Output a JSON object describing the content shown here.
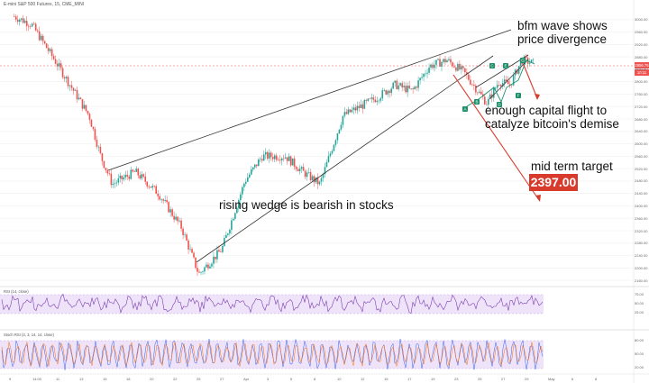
{
  "chart_title": "E-mini S&P 500 Futures, 15, CME_MINI",
  "annotations": {
    "bfm": "bfm wave shows\nprice divergence",
    "capital": "enough capital flight to\ncatalyze bitcoin's demise",
    "midterm": "mid term target",
    "wedge": "rising wedge is bearish in stocks"
  },
  "target_value": "2397.00",
  "last_price_labels": {
    "price": "2856.75",
    "close": "10:11"
  },
  "price_axis": [
    "3000.00",
    "2960.00",
    "2920.00",
    "2880.00",
    "2840.00",
    "2800.00",
    "2760.00",
    "2720.00",
    "2680.00",
    "2640.00",
    "2600.00",
    "2560.00",
    "2520.00",
    "2480.00",
    "2440.00",
    "2400.00",
    "2360.00",
    "2320.00",
    "2280.00",
    "2240.00",
    "2200.00",
    "2160.00"
  ],
  "rsi_label": "RSI (14, close)",
  "rsi_axis": [
    "75.00",
    "50.00",
    "25.00"
  ],
  "stoch_label": "Stoch RSI (3, 3, 14, 14, close)",
  "stoch_axis": [
    "80.00",
    "50.00",
    "20.00"
  ],
  "time_axis": [
    "9",
    "14:00",
    "11",
    "13",
    "15",
    "18",
    "20",
    "22",
    "25",
    "27",
    "Apr",
    "3",
    "5",
    "8",
    "10",
    "12",
    "15",
    "17",
    "19",
    "23",
    "25",
    "27",
    "29",
    "May",
    "6",
    "8"
  ],
  "wave_points": [
    "A",
    "B",
    "C",
    "D",
    "E",
    "F",
    "G"
  ],
  "colors": {
    "up": "#26a69a",
    "down": "#ef5350",
    "target": "#d83a2c",
    "rsi": "#7b3fb0",
    "stoch_k": "#2962ff",
    "stoch_d": "#ff6d00",
    "band": "#e7d9f5"
  },
  "chart_data": {
    "type": "candlestick",
    "title": "E-mini S&P 500 Futures, 15, CME_MINI",
    "ylim": [
      2140,
      3040
    ],
    "last_price": 2856.75,
    "target": 2397.0,
    "annotations": [
      "bfm wave shows price divergence",
      "enough capital flight to catalyze bitcoin's demise",
      "mid term target",
      "rising wedge is bearish in stocks"
    ],
    "key_points": [
      {
        "t": 0.02,
        "p": 3010
      },
      {
        "t": 0.05,
        "p": 2985
      },
      {
        "t": 0.09,
        "p": 2870
      },
      {
        "t": 0.15,
        "p": 2690
      },
      {
        "t": 0.17,
        "p": 2560
      },
      {
        "t": 0.19,
        "p": 2470
      },
      {
        "t": 0.23,
        "p": 2510
      },
      {
        "t": 0.27,
        "p": 2440
      },
      {
        "t": 0.31,
        "p": 2330
      },
      {
        "t": 0.34,
        "p": 2180
      },
      {
        "t": 0.38,
        "p": 2260
      },
      {
        "t": 0.42,
        "p": 2480
      },
      {
        "t": 0.45,
        "p": 2560
      },
      {
        "t": 0.49,
        "p": 2560
      },
      {
        "t": 0.52,
        "p": 2510
      },
      {
        "t": 0.55,
        "p": 2470
      },
      {
        "t": 0.59,
        "p": 2690
      },
      {
        "t": 0.62,
        "p": 2720
      },
      {
        "t": 0.65,
        "p": 2750
      },
      {
        "t": 0.68,
        "p": 2790
      },
      {
        "t": 0.71,
        "p": 2770
      },
      {
        "t": 0.74,
        "p": 2850
      },
      {
        "t": 0.77,
        "p": 2870
      },
      {
        "t": 0.8,
        "p": 2830
      },
      {
        "t": 0.82,
        "p": 2780
      },
      {
        "t": 0.84,
        "p": 2730
      },
      {
        "t": 0.86,
        "p": 2800
      },
      {
        "t": 0.88,
        "p": 2790
      },
      {
        "t": 0.9,
        "p": 2870
      },
      {
        "t": 0.92,
        "p": 2860
      }
    ]
  }
}
